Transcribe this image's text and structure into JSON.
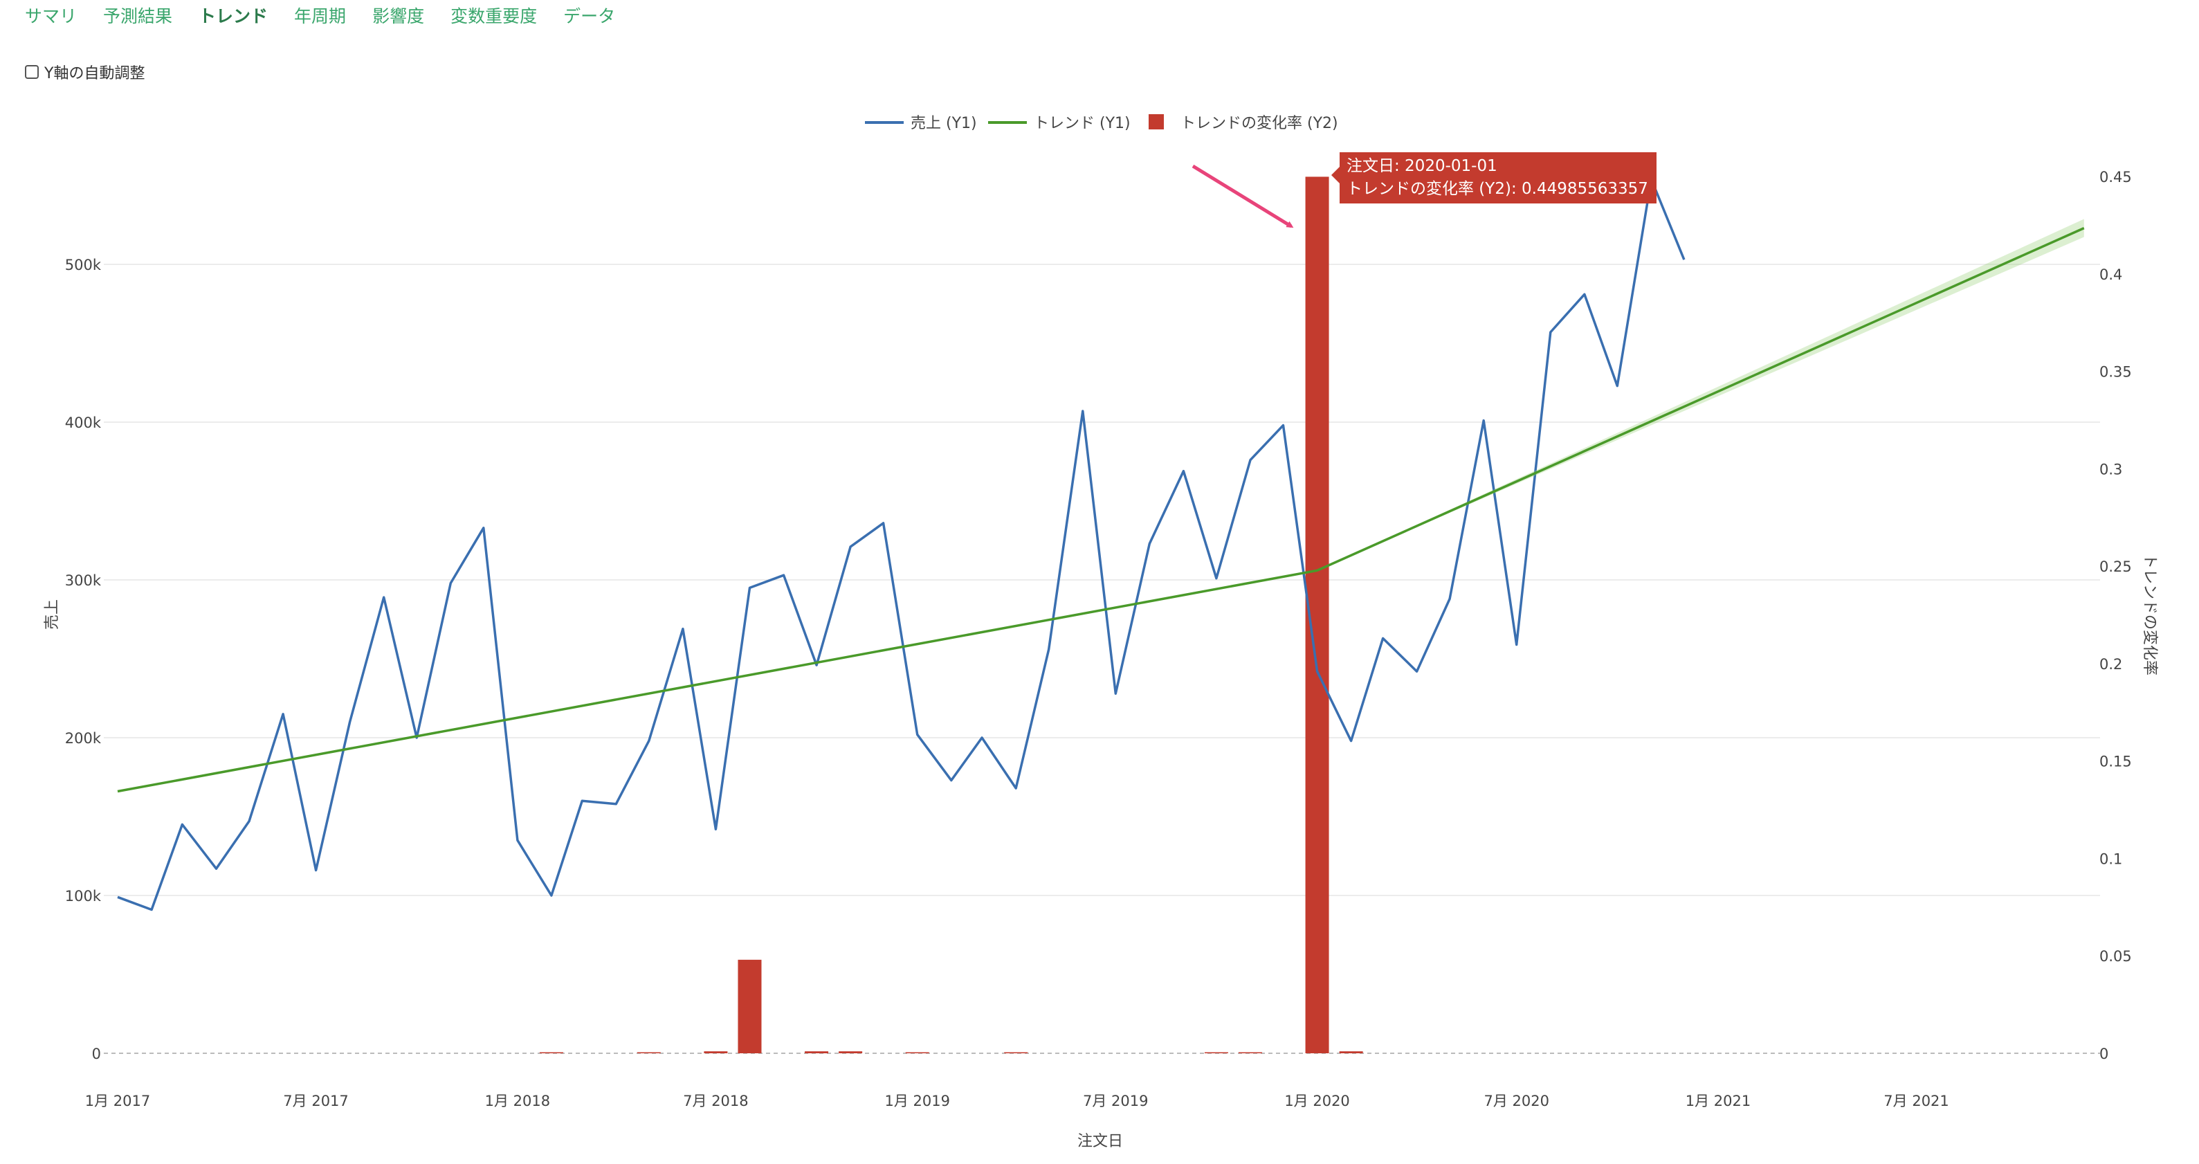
{
  "tabs": [
    {
      "label": "サマリ",
      "active": false
    },
    {
      "label": "予測結果",
      "active": false
    },
    {
      "label": "トレンド",
      "active": true
    },
    {
      "label": "年周期",
      "active": false
    },
    {
      "label": "影響度",
      "active": false
    },
    {
      "label": "変数重要度",
      "active": false
    },
    {
      "label": "データ",
      "active": false
    }
  ],
  "controls": {
    "autoscale_label": "Y軸の自動調整",
    "autoscale_checked": false
  },
  "tooltip": {
    "line1": "注文日: 2020-01-01",
    "line2": "トレンドの変化率 (Y2): 0.44985563357"
  },
  "colors": {
    "sales": "#3a6fb0",
    "trend": "#4a9a2a",
    "rate": "#c33b2e",
    "tab": "#3aa66c",
    "annotation_arrow": "#e8447a"
  },
  "chart_data": {
    "type": "line",
    "xlabel": "注文日",
    "ylabel": "売上",
    "y2label": "トレンドの変化率",
    "ylim": [
      0,
      560000
    ],
    "y2lim": [
      0,
      0.45
    ],
    "xlim": [
      "2017-01-01",
      "2021-12-01"
    ],
    "legend_position": "top-center",
    "grid": true,
    "x_ticks": [
      {
        "date": "2017-01-01",
        "label": "1月 2017"
      },
      {
        "date": "2017-07-01",
        "label": "7月 2017"
      },
      {
        "date": "2018-01-01",
        "label": "1月 2018"
      },
      {
        "date": "2018-07-01",
        "label": "7月 2018"
      },
      {
        "date": "2019-01-01",
        "label": "1月 2019"
      },
      {
        "date": "2019-07-01",
        "label": "7月 2019"
      },
      {
        "date": "2020-01-01",
        "label": "1月 2020"
      },
      {
        "date": "2020-07-01",
        "label": "7月 2020"
      },
      {
        "date": "2021-01-01",
        "label": "1月 2021"
      },
      {
        "date": "2021-07-01",
        "label": "7月 2021"
      }
    ],
    "y_ticks": [
      {
        "v": 0,
        "label": "0"
      },
      {
        "v": 100000,
        "label": "100k"
      },
      {
        "v": 200000,
        "label": "200k"
      },
      {
        "v": 300000,
        "label": "300k"
      },
      {
        "v": 400000,
        "label": "400k"
      },
      {
        "v": 500000,
        "label": "500k"
      }
    ],
    "y2_ticks": [
      {
        "v": 0,
        "label": "0"
      },
      {
        "v": 0.05,
        "label": "0.05"
      },
      {
        "v": 0.1,
        "label": "0.1"
      },
      {
        "v": 0.15,
        "label": "0.15"
      },
      {
        "v": 0.2,
        "label": "0.2"
      },
      {
        "v": 0.25,
        "label": "0.25"
      },
      {
        "v": 0.3,
        "label": "0.3"
      },
      {
        "v": 0.35,
        "label": "0.35"
      },
      {
        "v": 0.4,
        "label": "0.4"
      },
      {
        "v": 0.45,
        "label": "0.45"
      }
    ],
    "series": [
      {
        "name": "売上 (Y1)",
        "kind": "line",
        "axis": "y1",
        "dates": [
          "2017-01-01",
          "2017-02-01",
          "2017-03-01",
          "2017-04-01",
          "2017-05-01",
          "2017-06-01",
          "2017-07-01",
          "2017-08-01",
          "2017-09-01",
          "2017-10-01",
          "2017-11-01",
          "2017-12-01",
          "2018-01-01",
          "2018-02-01",
          "2018-03-01",
          "2018-04-01",
          "2018-05-01",
          "2018-06-01",
          "2018-07-01",
          "2018-08-01",
          "2018-09-01",
          "2018-10-01",
          "2018-11-01",
          "2018-12-01",
          "2019-01-01",
          "2019-02-01",
          "2019-03-01",
          "2019-04-01",
          "2019-05-01",
          "2019-06-01",
          "2019-07-01",
          "2019-08-01",
          "2019-09-01",
          "2019-10-01",
          "2019-11-01",
          "2019-12-01",
          "2020-01-01",
          "2020-02-01",
          "2020-03-01",
          "2020-04-01",
          "2020-05-01",
          "2020-06-01",
          "2020-07-01",
          "2020-08-01",
          "2020-09-01",
          "2020-10-01",
          "2020-11-01",
          "2020-12-01"
        ],
        "values": [
          99000,
          91000,
          145000,
          117000,
          147000,
          215000,
          116000,
          210000,
          289000,
          200000,
          298000,
          333000,
          135000,
          100000,
          160000,
          158000,
          198000,
          269000,
          142000,
          295000,
          303000,
          246000,
          321000,
          336000,
          202000,
          173000,
          200000,
          168000,
          256000,
          407000,
          228000,
          323000,
          369000,
          301000,
          376000,
          398000,
          242000,
          198000,
          263000,
          242000,
          288000,
          401000,
          259000,
          457000,
          481000,
          423000,
          554000,
          503000
        ]
      },
      {
        "name": "トレンド (Y1)",
        "kind": "line",
        "axis": "y1",
        "dates": [
          "2017-01-01",
          "2020-01-01",
          "2021-12-01"
        ],
        "values": [
          166000,
          306000,
          523000
        ]
      },
      {
        "name": "トレンドの変化率 (Y2)",
        "kind": "bar",
        "axis": "y2",
        "dates": [
          "2018-02-01",
          "2018-05-01",
          "2018-07-01",
          "2018-08-01",
          "2018-10-01",
          "2018-11-01",
          "2019-01-01",
          "2019-04-01",
          "2019-10-01",
          "2019-11-01",
          "2020-01-01",
          "2020-02-01"
        ],
        "values": [
          0.0005,
          0.0005,
          0.001,
          0.048,
          0.001,
          0.001,
          0.0005,
          0.0005,
          0.0005,
          0.0005,
          0.44985563357,
          0.001
        ]
      }
    ]
  }
}
